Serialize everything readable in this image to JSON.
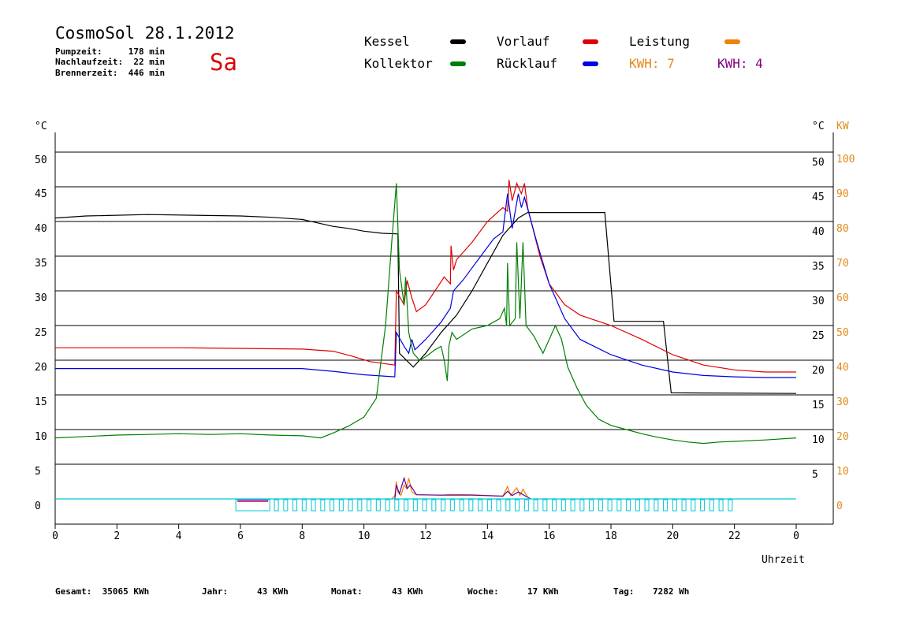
{
  "header": {
    "title": "CosmoSol 28.1.2012",
    "day": "Sa",
    "pump_time": "Pumpzeit:     178 min",
    "after_run_time": "Nachlaufzeit:  22 min",
    "burner_time": "Brennerzeit:  446 min"
  },
  "legend": {
    "kessel": {
      "label": "Kessel",
      "color": "#000000"
    },
    "vorlauf": {
      "label": "Vorlauf",
      "color": "#e00000"
    },
    "leistung": {
      "label": "Leistung",
      "color": "#f08000"
    },
    "kollektor": {
      "label": "Kollektor",
      "color": "#008000"
    },
    "ruecklauf": {
      "label": "Rücklauf",
      "color": "#0000e0"
    },
    "kwh_orange": "KWH: 7",
    "kwh_purple": "KWH: 4",
    "kwh_orange_color": "#e08a1a",
    "kwh_purple_color": "#800080"
  },
  "footer": {
    "total": "Gesamt:  35065 KWh",
    "year_label": "Jahr:",
    "year_value": "43 KWh",
    "month_label": "Monat:",
    "month_value": "43 KWh",
    "week_label": "Woche:",
    "week_value": "17 KWh",
    "day_label": "Tag:",
    "day_value": "7282 Wh"
  },
  "chart_data": {
    "type": "line",
    "title": "CosmoSol 28.1.2012",
    "xlabel": "Uhrzeit",
    "ylabel_left": "°C",
    "ylabel_right_temp": "°C",
    "ylabel_right_power": "KW",
    "xlim": [
      0,
      24
    ],
    "ylim": [
      0,
      50
    ],
    "y2lim": [
      0,
      100
    ],
    "grid": "horizontal",
    "x_ticks": [
      "0",
      "2",
      "4",
      "6",
      "8",
      "10",
      "12",
      "14",
      "16",
      "18",
      "20",
      "22",
      "0"
    ],
    "y_ticks": [
      0,
      5,
      10,
      15,
      20,
      25,
      30,
      35,
      40,
      45,
      50
    ],
    "y2_ticks": [
      0,
      10,
      20,
      30,
      40,
      50,
      60,
      70,
      80,
      90,
      100
    ],
    "series": [
      {
        "name": "Kessel",
        "color": "#000000",
        "points": [
          [
            0,
            40.5
          ],
          [
            1,
            40.8
          ],
          [
            3,
            41
          ],
          [
            6,
            40.8
          ],
          [
            7,
            40.6
          ],
          [
            8,
            40.3
          ],
          [
            8.5,
            39.8
          ],
          [
            9,
            39.3
          ],
          [
            9.5,
            39
          ],
          [
            10,
            38.6
          ],
          [
            10.6,
            38.3
          ],
          [
            11.1,
            38.2
          ],
          [
            11.15,
            21
          ],
          [
            11.6,
            19
          ],
          [
            12,
            21
          ],
          [
            12.5,
            24
          ],
          [
            13,
            26.5
          ],
          [
            13.5,
            30
          ],
          [
            14,
            34
          ],
          [
            14.5,
            38
          ],
          [
            15,
            40.5
          ],
          [
            15.3,
            41.3
          ],
          [
            17.8,
            41.3
          ],
          [
            18.1,
            25.6
          ],
          [
            19.7,
            25.6
          ],
          [
            19.95,
            15.3
          ],
          [
            24,
            15.2
          ]
        ]
      },
      {
        "name": "Vorlauf",
        "color": "#e00000",
        "points": [
          [
            0,
            21.8
          ],
          [
            4,
            21.8
          ],
          [
            8,
            21.6
          ],
          [
            9,
            21.3
          ],
          [
            9.6,
            20.6
          ],
          [
            10.2,
            19.8
          ],
          [
            11,
            19.3
          ],
          [
            11.05,
            30
          ],
          [
            11.3,
            28
          ],
          [
            11.4,
            31.5
          ],
          [
            11.55,
            29
          ],
          [
            11.7,
            27
          ],
          [
            12,
            28
          ],
          [
            12.3,
            30
          ],
          [
            12.6,
            32
          ],
          [
            12.8,
            31
          ],
          [
            12.82,
            36.5
          ],
          [
            12.9,
            33
          ],
          [
            13,
            34.5
          ],
          [
            13.5,
            37
          ],
          [
            14,
            40
          ],
          [
            14.5,
            42
          ],
          [
            14.65,
            41.5
          ],
          [
            14.7,
            46
          ],
          [
            14.8,
            43
          ],
          [
            14.95,
            45.5
          ],
          [
            15.1,
            44
          ],
          [
            15.2,
            45.5
          ],
          [
            15.3,
            42
          ],
          [
            15.7,
            35
          ],
          [
            16,
            31
          ],
          [
            16.5,
            28
          ],
          [
            17,
            26.5
          ],
          [
            18,
            25
          ],
          [
            19,
            23
          ],
          [
            20,
            20.8
          ],
          [
            21,
            19.3
          ],
          [
            22,
            18.6
          ],
          [
            23,
            18.3
          ],
          [
            24,
            18.3
          ]
        ]
      },
      {
        "name": "Rücklauf",
        "color": "#0000e0",
        "points": [
          [
            0,
            18.8
          ],
          [
            4,
            18.8
          ],
          [
            8,
            18.8
          ],
          [
            9,
            18.4
          ],
          [
            10,
            17.9
          ],
          [
            11,
            17.6
          ],
          [
            11.05,
            24
          ],
          [
            11.3,
            22
          ],
          [
            11.45,
            21
          ],
          [
            11.55,
            23
          ],
          [
            11.65,
            21.5
          ],
          [
            12,
            23
          ],
          [
            12.5,
            25.5
          ],
          [
            12.8,
            27.5
          ],
          [
            12.9,
            30
          ],
          [
            13.2,
            31.5
          ],
          [
            13.7,
            34.5
          ],
          [
            14.2,
            37.5
          ],
          [
            14.5,
            38.5
          ],
          [
            14.65,
            44
          ],
          [
            14.8,
            39
          ],
          [
            15,
            44
          ],
          [
            15.1,
            42
          ],
          [
            15.2,
            43.5
          ],
          [
            15.6,
            37
          ],
          [
            16,
            31
          ],
          [
            16.5,
            26
          ],
          [
            17,
            23
          ],
          [
            18,
            20.8
          ],
          [
            19,
            19.3
          ],
          [
            20,
            18.3
          ],
          [
            21,
            17.8
          ],
          [
            22,
            17.6
          ],
          [
            23,
            17.5
          ],
          [
            24,
            17.5
          ]
        ]
      },
      {
        "name": "Kollektor",
        "color": "#008000",
        "points": [
          [
            0,
            8.8
          ],
          [
            1,
            9
          ],
          [
            2,
            9.2
          ],
          [
            3,
            9.3
          ],
          [
            4,
            9.4
          ],
          [
            5,
            9.3
          ],
          [
            6,
            9.4
          ],
          [
            7,
            9.2
          ],
          [
            8,
            9.1
          ],
          [
            8.6,
            8.8
          ],
          [
            9,
            9.5
          ],
          [
            9.5,
            10.5
          ],
          [
            10,
            11.8
          ],
          [
            10.4,
            14.5
          ],
          [
            10.7,
            25
          ],
          [
            10.9,
            37
          ],
          [
            11.05,
            45.5
          ],
          [
            11.15,
            33
          ],
          [
            11.3,
            28
          ],
          [
            11.35,
            32
          ],
          [
            11.45,
            24
          ],
          [
            11.6,
            21
          ],
          [
            11.8,
            20
          ],
          [
            12,
            20.5
          ],
          [
            12.3,
            21.5
          ],
          [
            12.5,
            22
          ],
          [
            12.6,
            20
          ],
          [
            12.7,
            17
          ],
          [
            12.75,
            22
          ],
          [
            12.85,
            24
          ],
          [
            13,
            23
          ],
          [
            13.5,
            24.5
          ],
          [
            14,
            25
          ],
          [
            14.4,
            26
          ],
          [
            14.55,
            27.5
          ],
          [
            14.62,
            25
          ],
          [
            14.65,
            34
          ],
          [
            14.72,
            25
          ],
          [
            14.9,
            26
          ],
          [
            14.95,
            37
          ],
          [
            15.05,
            26
          ],
          [
            15.15,
            37
          ],
          [
            15.25,
            25
          ],
          [
            15.5,
            23.5
          ],
          [
            15.8,
            21
          ],
          [
            16,
            23
          ],
          [
            16.2,
            25
          ],
          [
            16.4,
            23
          ],
          [
            16.6,
            19
          ],
          [
            16.9,
            16
          ],
          [
            17.2,
            13.5
          ],
          [
            17.6,
            11.5
          ],
          [
            18,
            10.6
          ],
          [
            18.5,
            10
          ],
          [
            19,
            9.4
          ],
          [
            19.5,
            8.9
          ],
          [
            20,
            8.5
          ],
          [
            20.5,
            8.2
          ],
          [
            21,
            8
          ],
          [
            21.5,
            8.2
          ],
          [
            22,
            8.3
          ],
          [
            23,
            8.5
          ],
          [
            24,
            8.8
          ]
        ]
      },
      {
        "name": "Leistung",
        "color": "#f08000",
        "axis": "right",
        "points": [
          [
            10.9,
            0
          ],
          [
            11.0,
            1
          ],
          [
            11.05,
            5
          ],
          [
            11.1,
            2
          ],
          [
            11.2,
            1
          ],
          [
            11.3,
            4
          ],
          [
            11.38,
            3
          ],
          [
            11.45,
            6
          ],
          [
            11.55,
            2
          ],
          [
            11.7,
            1.2
          ],
          [
            12.5,
            1.1
          ],
          [
            12.8,
            1.3
          ],
          [
            13.5,
            1.2
          ],
          [
            14,
            1
          ],
          [
            14.5,
            0.8
          ],
          [
            14.65,
            3.6
          ],
          [
            14.75,
            1
          ],
          [
            14.95,
            3.2
          ],
          [
            15.05,
            1
          ],
          [
            15.15,
            2.8
          ],
          [
            15.3,
            0.5
          ],
          [
            15.4,
            0
          ]
        ]
      },
      {
        "name": "",
        "color": "#5a00a0",
        "axis": "right",
        "points": [
          [
            11.0,
            0
          ],
          [
            11.05,
            4
          ],
          [
            11.15,
            1.5
          ],
          [
            11.3,
            6
          ],
          [
            11.4,
            3
          ],
          [
            11.5,
            4
          ],
          [
            11.7,
            1.2
          ],
          [
            12.5,
            1.1
          ],
          [
            13.5,
            1.1
          ],
          [
            14.5,
            0.8
          ],
          [
            14.65,
            2.2
          ],
          [
            14.8,
            1
          ],
          [
            15.0,
            2.0
          ],
          [
            15.2,
            1
          ],
          [
            15.4,
            0
          ]
        ]
      },
      {
        "name": "",
        "color": "#00c8d8",
        "points": [
          [
            0,
            0
          ],
          [
            24,
            0
          ]
        ]
      }
    ]
  }
}
